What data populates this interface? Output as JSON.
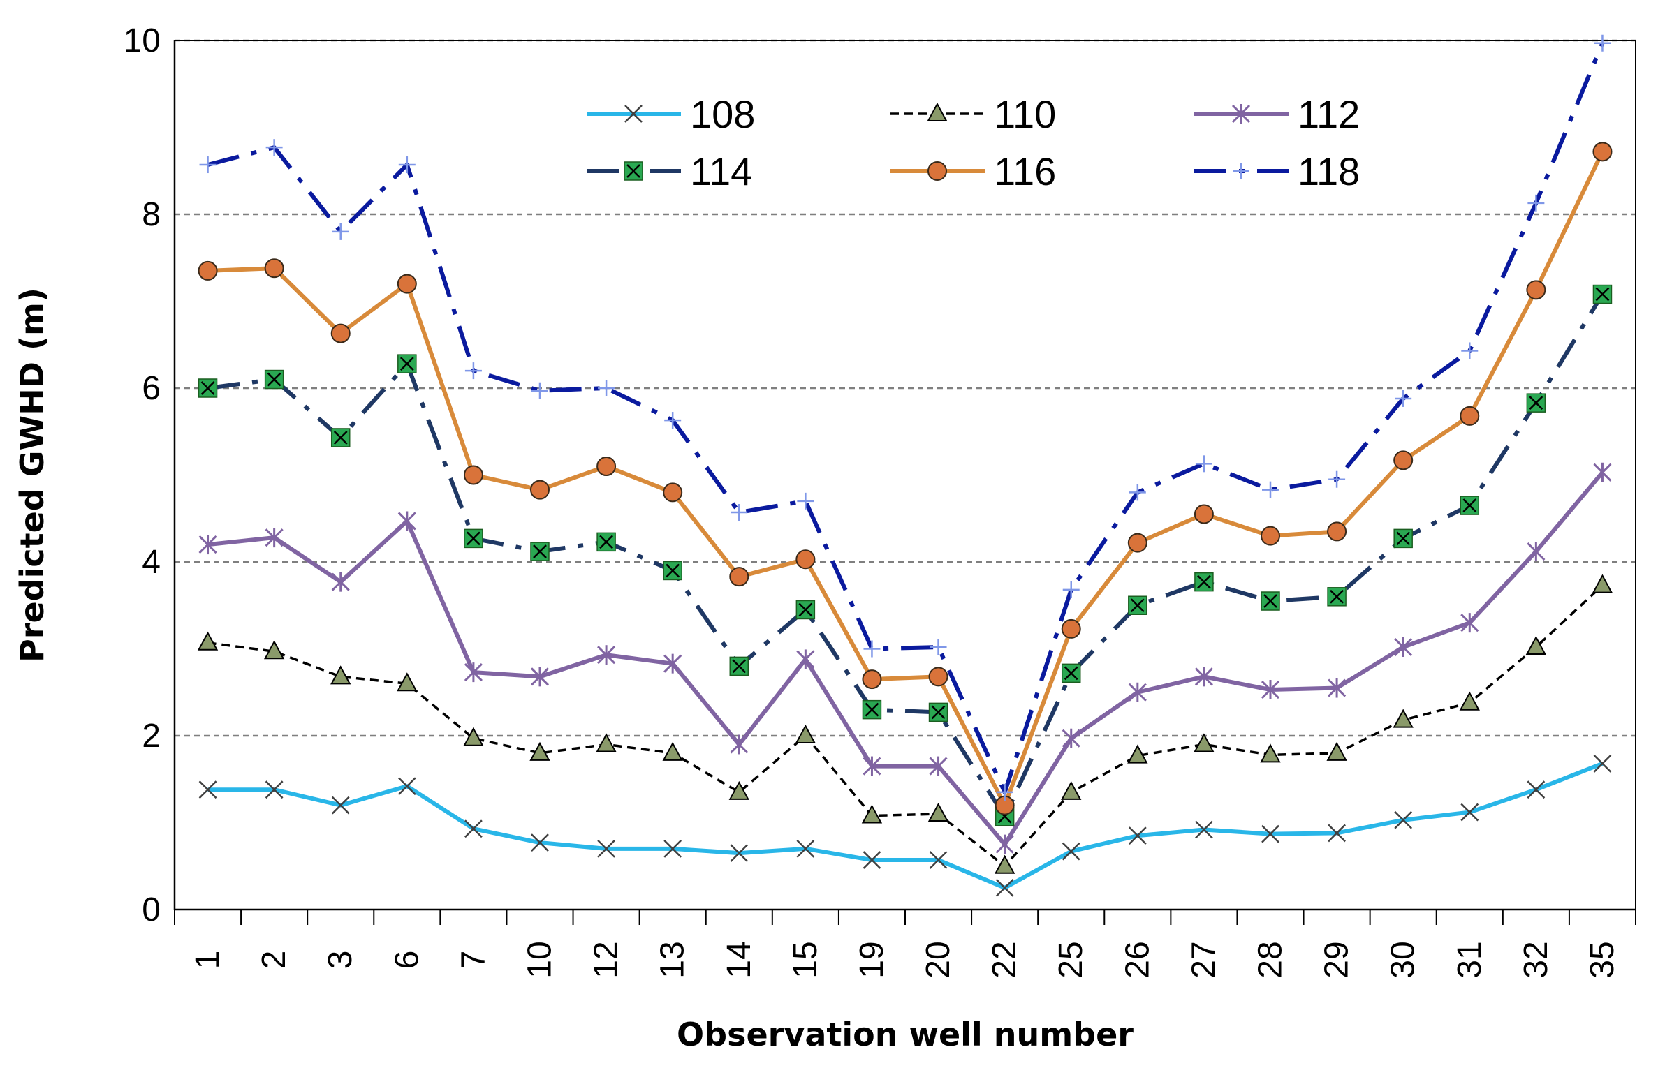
{
  "chart_data": {
    "type": "line",
    "title": "",
    "xlabel": "Observation well number",
    "ylabel": "Predicted GWHD (m)",
    "ylim": [
      0,
      10
    ],
    "yticks": [
      "0",
      "2",
      "4",
      "6",
      "8",
      "10"
    ],
    "grid": "horizontal dashed",
    "legend_position": "top-center",
    "categories": [
      "1",
      "2",
      "3",
      "6",
      "7",
      "10",
      "12",
      "13",
      "14",
      "15",
      "19",
      "20",
      "22",
      "25",
      "26",
      "27",
      "28",
      "29",
      "30",
      "31",
      "32",
      "35"
    ],
    "series": [
      {
        "name": "108",
        "color": "#29b6e8",
        "marker": "x",
        "dash": "solid",
        "values": [
          1.38,
          1.38,
          1.2,
          1.42,
          0.93,
          0.77,
          0.7,
          0.7,
          0.65,
          0.7,
          0.57,
          0.57,
          0.25,
          0.67,
          0.85,
          0.92,
          0.87,
          0.88,
          1.03,
          1.12,
          1.38,
          1.68
        ]
      },
      {
        "name": "110",
        "color": "#000000",
        "marker": "triangle",
        "dash": "dashed",
        "values": [
          3.07,
          2.97,
          2.68,
          2.6,
          1.97,
          1.8,
          1.9,
          1.8,
          1.35,
          2.0,
          1.08,
          1.1,
          0.5,
          1.35,
          1.77,
          1.9,
          1.78,
          1.8,
          2.18,
          2.38,
          3.02,
          3.73
        ]
      },
      {
        "name": "112",
        "color": "#8064a2",
        "marker": "asterisk",
        "dash": "solid",
        "values": [
          4.2,
          4.28,
          3.77,
          4.47,
          2.73,
          2.68,
          2.93,
          2.83,
          1.9,
          2.88,
          1.65,
          1.65,
          0.75,
          1.97,
          2.5,
          2.68,
          2.53,
          2.55,
          3.02,
          3.3,
          4.12,
          5.03
        ]
      },
      {
        "name": "114",
        "color": "#1f3864",
        "marker": "square-x",
        "dash": "dashdot",
        "values": [
          6.0,
          6.1,
          5.43,
          6.28,
          4.27,
          4.12,
          4.23,
          3.9,
          2.8,
          3.45,
          2.3,
          2.27,
          1.07,
          2.72,
          3.5,
          3.77,
          3.55,
          3.6,
          4.27,
          4.65,
          5.83,
          7.08
        ]
      },
      {
        "name": "116",
        "color": "#d88a3a",
        "marker": "circle",
        "dash": "solid",
        "values": [
          7.35,
          7.38,
          6.63,
          7.2,
          5.0,
          4.83,
          5.1,
          4.8,
          3.83,
          4.03,
          2.65,
          2.68,
          1.2,
          3.23,
          4.22,
          4.55,
          4.3,
          4.35,
          5.17,
          5.68,
          7.13,
          8.72
        ]
      },
      {
        "name": "118",
        "color": "#0a1a9e",
        "marker": "plus",
        "dash": "dashdot",
        "values": [
          8.57,
          8.77,
          7.8,
          8.57,
          6.2,
          5.97,
          6.0,
          5.63,
          4.57,
          4.7,
          3.0,
          3.02,
          1.35,
          3.68,
          4.8,
          5.13,
          4.83,
          4.95,
          5.88,
          6.43,
          8.13,
          9.97
        ]
      }
    ]
  }
}
